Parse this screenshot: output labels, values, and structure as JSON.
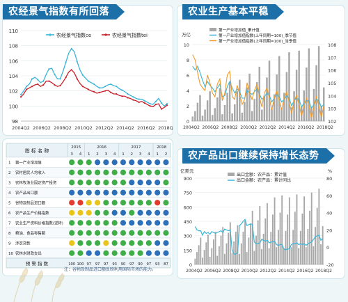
{
  "panels": {
    "p1": {
      "title": "农经景气指数有所回落"
    },
    "p2": {
      "title": "农业生产基本平稳"
    },
    "p3": {
      "title": "农产品出口继续保持增长态势"
    }
  },
  "note": "注：谷物及制品进口额反映利用国际市场的能力。",
  "table": {
    "header_label": "指 标 名 称",
    "years": [
      {
        "label": "2015",
        "span": 2
      },
      {
        "label": "2016",
        "span": 4
      },
      {
        "label": "2017",
        "span": 4
      },
      {
        "label": "2018",
        "span": 2
      }
    ],
    "quarters": [
      "3",
      "4",
      "1",
      "2",
      "3",
      "4",
      "1",
      "2",
      "3",
      "4",
      "1",
      "2"
    ],
    "rows": [
      {
        "no": "1",
        "name": "第一产业增加值"
      },
      {
        "no": "2",
        "name": "农村居民人均收入"
      },
      {
        "no": "3",
        "name": "农林牧渔业固定资产投资"
      },
      {
        "no": "4",
        "name": "农产品出口额"
      },
      {
        "no": "5",
        "name": "谷物及制品进口额"
      },
      {
        "no": "6",
        "name": "农产品生产价格指数"
      },
      {
        "no": "7",
        "name": "农业生产资料价格指数(逆转)"
      },
      {
        "no": "8",
        "name": "粮油、食品零售额"
      },
      {
        "no": "9",
        "name": "涉农贷款"
      },
      {
        "no": "10",
        "name": "农林水财政支出"
      }
    ],
    "light_codes": [
      "GGGBBBBBBBBB",
      "GGGGGGGGGGGG",
      "GGGGGGGBBBBG",
      "BBBBBBBBBBBB",
      "RRYYGGGGGGRG",
      "YYYGGBBGBBBB",
      "GGGGGGBBBBBB",
      "GGGGGGGGGGGG",
      "YGGGYGGGGGBB",
      "GGBBGGGGGBBB"
    ],
    "footer_label": "预 警 指 数",
    "footer_values": [
      "100",
      "100",
      "97",
      "97",
      "97",
      "93",
      "90",
      "97",
      "90",
      "97",
      "93",
      "87"
    ],
    "colors": {
      "G": "#3fae49",
      "B": "#2d6fb8",
      "Y": "#e8c41c",
      "R": "#e33b2e"
    }
  },
  "chart_data": [
    {
      "type": "line",
      "legend": [
        "农经景气指数ce",
        "农经景气指数tei"
      ],
      "x_ticks": [
        "2004Q2",
        "2006Q2",
        "2008Q2",
        "2010Q2",
        "2012Q2",
        "2014Q2",
        "2016Q2",
        "2018Q2"
      ],
      "ylim": [
        98,
        110
      ],
      "y_ticks": [
        98,
        100,
        102,
        104,
        106,
        108,
        110
      ],
      "colors": {
        "ce": "#3ab5d8",
        "tei": "#c8202a"
      },
      "series": [
        {
          "name": "农经景气指数ce",
          "values": [
            101.5,
            102.0,
            102.6,
            102.9,
            103.6,
            103.8,
            103.5,
            103.1,
            103.3,
            104.2,
            104.9,
            105.0,
            104.2,
            103.6,
            103.6,
            104.6,
            105.8,
            107.0,
            107.6,
            107.2,
            105.9,
            104.8,
            104.1,
            103.7,
            103.3,
            103.1,
            102.9,
            102.6,
            102.4,
            102.4,
            102.6,
            102.8,
            102.9,
            102.7,
            102.6,
            102.3,
            102.1,
            101.9,
            101.6,
            101.4,
            101.2,
            101.0,
            100.9,
            100.9,
            100.7,
            100.5,
            100.3,
            100.2,
            100.6,
            101.0,
            100.4,
            100.0,
            100.3
          ]
        },
        {
          "name": "农经景气指数tei",
          "values": [
            101.2,
            101.6,
            102.2,
            102.4,
            102.6,
            102.8,
            102.9,
            102.6,
            102.8,
            103.3,
            103.3,
            103.1,
            102.8,
            102.6,
            102.7,
            103.2,
            103.8,
            104.5,
            104.8,
            104.4,
            103.6,
            103.0,
            102.6,
            102.4,
            102.2,
            102.0,
            101.9,
            101.7,
            101.8,
            101.9,
            102.0,
            102.1,
            101.8,
            101.6,
            101.6,
            101.4,
            101.3,
            101.3,
            101.1,
            101.0,
            100.8,
            100.7,
            100.5,
            100.6,
            100.4,
            100.2,
            100.0,
            99.9,
            100.2,
            100.3,
            99.6,
            99.8,
            100.1
          ]
        }
      ]
    },
    {
      "type": "bar",
      "unit_left": "万亿",
      "legend": [
        "第一产业增加值_累计值",
        "第一产业增加值指数(上年同期=100)_季节值",
        "第一产业增加值指数(上年同期=100)_当季值"
      ],
      "x_ticks": [
        "2004Q2",
        "2006Q2",
        "2008Q2",
        "2010Q2",
        "2012Q2",
        "2014Q2",
        "2016Q2",
        "2018Q2"
      ],
      "ylim_left": [
        0,
        10
      ],
      "y_ticks_left": [
        0,
        2,
        4,
        6,
        8,
        10
      ],
      "ylim_right": [
        102,
        108
      ],
      "y_ticks_right": [
        102,
        103,
        104,
        105,
        106,
        107,
        108
      ],
      "colors": {
        "bar": "#a8a8a8",
        "season": "#3ab5d8",
        "current": "#f09a2a"
      },
      "values": [
        0.6,
        1.3,
        2.4,
        3.4,
        0.7,
        1.5,
        2.7,
        3.9,
        0.8,
        1.7,
        3.1,
        4.3,
        0.9,
        2.1,
        3.7,
        5.1,
        1.0,
        2.2,
        3.9,
        5.4,
        1.1,
        2.5,
        4.4,
        6.2,
        1.3,
        2.9,
        5.1,
        7.1,
        1.5,
        3.2,
        5.7,
        7.9,
        1.6,
        3.5,
        6.1,
        8.5,
        1.7,
        3.7,
        6.4,
        9.0,
        1.8,
        3.9,
        6.7,
        9.2,
        1.9,
        4.0,
        7.0,
        9.5,
        1.9,
        4.2,
        7.3,
        9.8,
        2.0,
        4.4
      ],
      "season_values": [
        106.3,
        106.0,
        106.3,
        105.8,
        105.2,
        104.7,
        105.1,
        104.8,
        104.6,
        104.3,
        104.6,
        104.9,
        103.9,
        104.0,
        104.7,
        105.1,
        104.6,
        104.2,
        104.5,
        104.3,
        103.8,
        103.8,
        104.4,
        104.2,
        104.1,
        104.3,
        104.5,
        104.1,
        103.7,
        103.9,
        104.2,
        104.0,
        103.5,
        103.8,
        104.1,
        103.9,
        103.5,
        103.7,
        104.0,
        103.8,
        103.2,
        103.6,
        103.8,
        103.7,
        103.1,
        103.4,
        103.6,
        103.6,
        103.0,
        103.3,
        103.7,
        103.6,
        103.1,
        103.3
      ],
      "current_values": [
        107.2,
        106.8,
        105.8,
        104.9,
        104.6,
        104.4,
        105.6,
        105.0,
        104.2,
        103.9,
        104.9,
        105.3,
        103.6,
        104.2,
        105.6,
        105.9,
        103.9,
        103.7,
        104.8,
        104.1,
        103.3,
        103.7,
        105.0,
        104.2,
        103.7,
        104.4,
        104.9,
        103.9,
        103.1,
        104.2,
        104.6,
        103.8,
        102.9,
        103.8,
        104.4,
        103.6,
        102.9,
        103.8,
        104.3,
        103.5,
        102.6,
        103.6,
        104.0,
        103.3,
        102.4,
        103.2,
        103.8,
        103.3,
        102.2,
        103.1,
        103.9,
        103.2,
        102.3,
        103.2
      ]
    },
    {
      "type": "bar",
      "unit_left": "亿美元",
      "unit_right": "%",
      "legend": [
        "出口金额：农产品：累计值",
        "出口金额：农产品：累计同比"
      ],
      "x_ticks": [
        "2004Q2",
        "2006Q2",
        "2008Q2",
        "2010Q2",
        "2012Q2",
        "2014Q2",
        "2016Q2",
        "2018Q2"
      ],
      "ylim_left": [
        0,
        900
      ],
      "y_ticks_left": [
        0,
        150,
        300,
        450,
        600,
        750,
        900
      ],
      "ylim_right": [
        -20,
        80
      ],
      "y_ticks_right": [
        -20,
        0,
        20,
        40,
        60,
        80
      ],
      "colors": {
        "bar": "#a8a8a8",
        "line": "#3ab5d8"
      },
      "values": [
        60,
        130,
        200,
        280,
        70,
        150,
        230,
        310,
        80,
        170,
        260,
        340,
        90,
        190,
        300,
        390,
        110,
        220,
        330,
        440,
        120,
        240,
        340,
        410,
        110,
        220,
        340,
        450,
        130,
        280,
        420,
        560,
        140,
        300,
        460,
        610,
        160,
        320,
        480,
        640,
        170,
        340,
        520,
        700,
        180,
        360,
        540,
        720,
        170,
        350,
        520,
        700,
        180,
        360,
        550,
        730,
        170,
        350,
        530,
        710,
        180,
        370,
        560,
        750,
        190,
        390,
        590,
        790,
        210,
        400
      ],
      "yoy_values": [
        24,
        20,
        19,
        19,
        14,
        18,
        16,
        17,
        15,
        18,
        17,
        16,
        17,
        18,
        19,
        17,
        21,
        20,
        19,
        20,
        -3,
        -8,
        -8,
        -6,
        25,
        27,
        30,
        32,
        25,
        26,
        27,
        26,
        6,
        4,
        4,
        5,
        9,
        8,
        7,
        8,
        5,
        6,
        6,
        7,
        3,
        2,
        3,
        3,
        -2,
        -3,
        -2,
        -2,
        3,
        4,
        4,
        5,
        3,
        4,
        3,
        4,
        2,
        4,
        5,
        6,
        9,
        12,
        13,
        14,
        8,
        10
      ]
    }
  ]
}
